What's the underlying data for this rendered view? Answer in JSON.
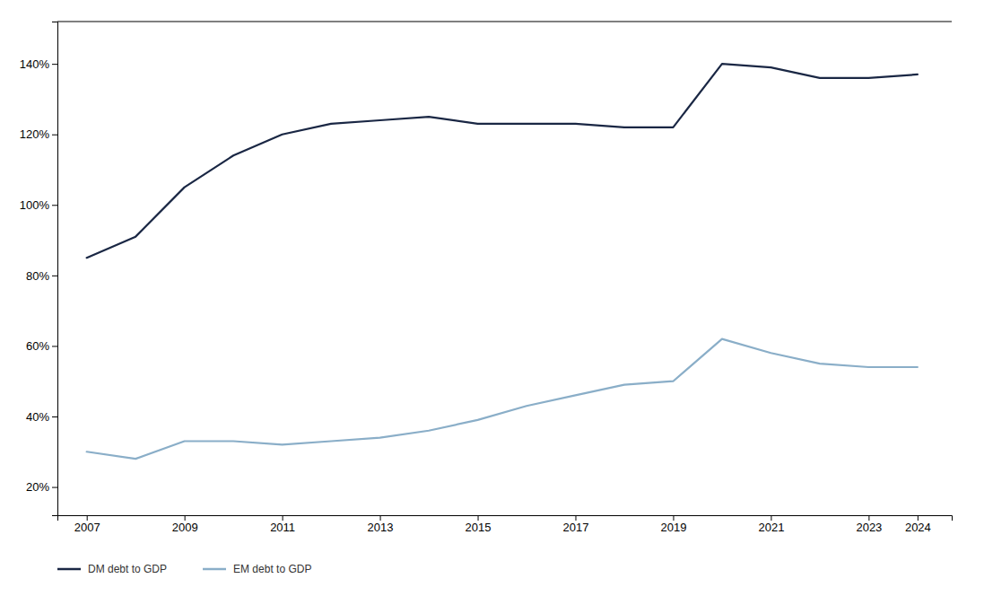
{
  "chart_data": {
    "type": "line",
    "x": [
      2007,
      2008,
      2009,
      2010,
      2011,
      2012,
      2013,
      2014,
      2015,
      2016,
      2017,
      2018,
      2019,
      2020,
      2021,
      2022,
      2023,
      2024
    ],
    "series": [
      {
        "name": "DM debt to GDP",
        "color": "#1a2744",
        "values": [
          85,
          91,
          105,
          114,
          120,
          123,
          124,
          125,
          123,
          123,
          123,
          122,
          122,
          140,
          139,
          136,
          136,
          137
        ]
      },
      {
        "name": "EM debt to GDP",
        "color": "#8aaec8",
        "values": [
          30,
          28,
          33,
          33,
          32,
          33,
          34,
          36,
          39,
          43,
          46,
          49,
          50,
          62,
          58,
          55,
          54,
          54
        ]
      }
    ],
    "xlim": [
      2006.4,
      2024.7
    ],
    "xticks": [
      2007,
      2009,
      2011,
      2013,
      2015,
      2017,
      2019,
      2021,
      2023,
      2024
    ],
    "ylim": [
      12,
      152
    ],
    "yticks": [
      {
        "value": 20,
        "label": "20%"
      },
      {
        "value": 40,
        "label": "40%"
      },
      {
        "value": 60,
        "label": "60%"
      },
      {
        "value": 80,
        "label": "80%"
      },
      {
        "value": 100,
        "label": "100%"
      },
      {
        "value": 120,
        "label": "120%"
      },
      {
        "value": 140,
        "label": "140%"
      }
    ],
    "grid": false,
    "legend": "bottom"
  }
}
